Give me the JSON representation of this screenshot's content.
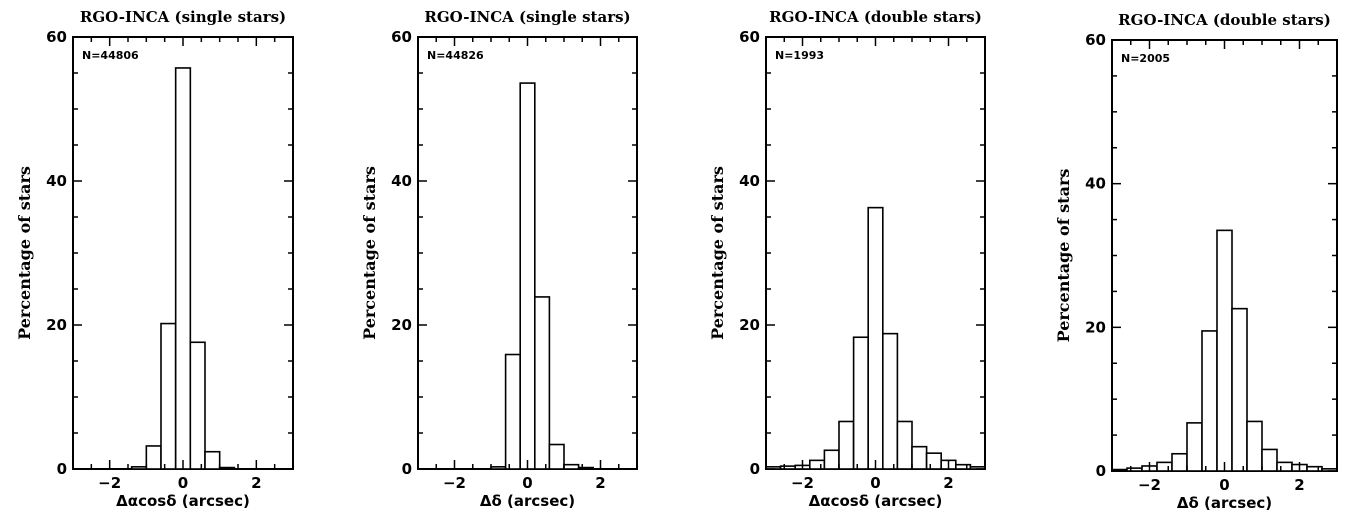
{
  "chart_data": [
    {
      "type": "bar",
      "title": "RGO-INCA (single stars)",
      "xlabel": "Δαcosδ (arcsec)",
      "ylabel": "Percentage of stars",
      "annotation": "N=44806",
      "xlim": [
        -3,
        3
      ],
      "ylim": [
        0,
        60
      ],
      "xticks": [
        -2,
        0,
        2
      ],
      "yticks": [
        0,
        20,
        40,
        60
      ],
      "bin_width": 0.4,
      "bins": [
        {
          "x": -1.2,
          "y": 0.3
        },
        {
          "x": -0.8,
          "y": 3.2
        },
        {
          "x": -0.4,
          "y": 20.2
        },
        {
          "x": 0.0,
          "y": 55.7
        },
        {
          "x": 0.4,
          "y": 17.6
        },
        {
          "x": 0.8,
          "y": 2.4
        },
        {
          "x": 1.2,
          "y": 0.2
        }
      ]
    },
    {
      "type": "bar",
      "title": "RGO-INCA (single stars)",
      "xlabel": "Δδ (arcsec)",
      "ylabel": "Percentage of stars",
      "annotation": "N=44826",
      "xlim": [
        -3,
        3
      ],
      "ylim": [
        0,
        60
      ],
      "xticks": [
        -2,
        0,
        2
      ],
      "yticks": [
        0,
        20,
        40,
        60
      ],
      "bin_width": 0.4,
      "bins": [
        {
          "x": -0.8,
          "y": 0.3
        },
        {
          "x": -0.4,
          "y": 15.9
        },
        {
          "x": 0.0,
          "y": 53.6
        },
        {
          "x": 0.4,
          "y": 23.9
        },
        {
          "x": 0.8,
          "y": 3.4
        },
        {
          "x": 1.2,
          "y": 0.6
        },
        {
          "x": 1.6,
          "y": 0.2
        }
      ]
    },
    {
      "type": "bar",
      "title": "RGO-INCA (double stars)",
      "xlabel": "Δαcosδ (arcsec)",
      "ylabel": "Percentage of stars",
      "annotation": "N=1993",
      "xlim": [
        -3,
        3
      ],
      "ylim": [
        0,
        60
      ],
      "xticks": [
        -2,
        0,
        2
      ],
      "yticks": [
        0,
        20,
        40,
        60
      ],
      "bin_width": 0.4,
      "bins": [
        {
          "x": -2.8,
          "y": 0.3
        },
        {
          "x": -2.4,
          "y": 0.4
        },
        {
          "x": -2.0,
          "y": 0.5
        },
        {
          "x": -1.6,
          "y": 1.2
        },
        {
          "x": -1.2,
          "y": 2.6
        },
        {
          "x": -0.8,
          "y": 6.6
        },
        {
          "x": -0.4,
          "y": 18.3
        },
        {
          "x": 0.0,
          "y": 36.3
        },
        {
          "x": 0.4,
          "y": 18.8
        },
        {
          "x": 0.8,
          "y": 6.6
        },
        {
          "x": 1.2,
          "y": 3.1
        },
        {
          "x": 1.6,
          "y": 2.2
        },
        {
          "x": 2.0,
          "y": 1.2
        },
        {
          "x": 2.4,
          "y": 0.6
        },
        {
          "x": 2.8,
          "y": 0.3
        }
      ]
    },
    {
      "type": "bar",
      "title": "RGO-INCA (double stars)",
      "xlabel": "Δδ (arcsec)",
      "ylabel": "Percentage of stars",
      "annotation": "N=2005",
      "xlim": [
        -3,
        3
      ],
      "ylim": [
        0,
        60
      ],
      "xticks": [
        -2,
        0,
        2
      ],
      "yticks": [
        0,
        20,
        40,
        60
      ],
      "bin_width": 0.4,
      "bins": [
        {
          "x": -2.8,
          "y": 0.2
        },
        {
          "x": -2.4,
          "y": 0.4
        },
        {
          "x": -2.0,
          "y": 0.7
        },
        {
          "x": -1.6,
          "y": 1.2
        },
        {
          "x": -1.2,
          "y": 2.4
        },
        {
          "x": -0.8,
          "y": 6.7
        },
        {
          "x": -0.4,
          "y": 19.5
        },
        {
          "x": 0.0,
          "y": 33.5
        },
        {
          "x": 0.4,
          "y": 22.6
        },
        {
          "x": 0.8,
          "y": 6.9
        },
        {
          "x": 1.2,
          "y": 3.0
        },
        {
          "x": 1.6,
          "y": 1.2
        },
        {
          "x": 2.0,
          "y": 0.9
        },
        {
          "x": 2.4,
          "y": 0.6
        },
        {
          "x": 2.8,
          "y": 0.3
        }
      ]
    }
  ]
}
